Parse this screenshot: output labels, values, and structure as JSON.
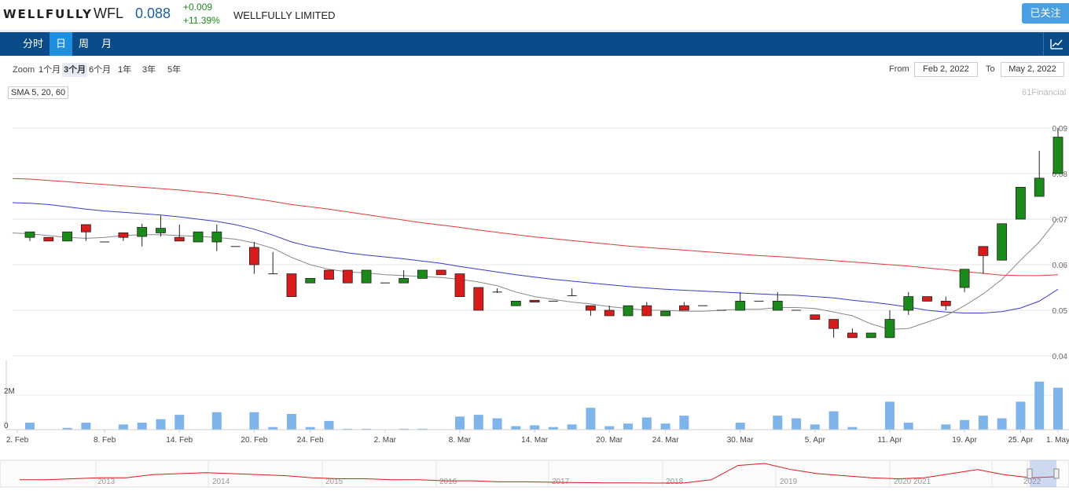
{
  "header": {
    "logo": "WELLFULLY",
    "ticker": "WFL",
    "price": "0.088",
    "change": "+0.009",
    "change_pct": "+11.39%",
    "company": "WELLFULLY LIMITED",
    "follow_label": "已关注"
  },
  "tabs": [
    "分时",
    "日",
    "周",
    "月"
  ],
  "active_tab": "日",
  "zoom": {
    "label": "Zoom",
    "options": [
      "1个月",
      "3个月",
      "6个月",
      "1年",
      "3年",
      "5年"
    ],
    "active": "3个月",
    "from_label": "From",
    "from_value": "Feb 2, 2022",
    "to_label": "To",
    "to_value": "May 2, 2022"
  },
  "indicator_label": "SMA 5, 20, 60",
  "watermark": "61Financial",
  "colors": {
    "up": "#1a8a1a",
    "down": "#d81b1b",
    "sma5": "#888888",
    "sma20": "#3a3acc",
    "sma60": "#e03a3a",
    "volume": "#7fb4ea",
    "nav_line": "#d81b1b"
  },
  "chart_data": {
    "type": "candlestick",
    "y_ticks": [
      "0.09",
      "0.08",
      "0.07",
      "0.06",
      "0.05",
      "0.04"
    ],
    "ylim": [
      0.04,
      0.09
    ],
    "x_tick_labels": [
      "2. Feb",
      "8. Feb",
      "14. Feb",
      "20. Feb",
      "24. Feb",
      "2. Mar",
      "8. Mar",
      "14. Mar",
      "20. Mar",
      "24. Mar",
      "30. Mar",
      "5. Apr",
      "11. Apr",
      "19. Apr",
      "25. Apr",
      "1. May"
    ],
    "volume_ticks": [
      "2M",
      "0"
    ],
    "volume_max": 4000000,
    "candles": [
      {
        "o": 0.066,
        "h": 0.0672,
        "l": 0.0652,
        "c": 0.0672,
        "v": 400000
      },
      {
        "o": 0.066,
        "h": 0.066,
        "l": 0.0652,
        "c": 0.0652,
        "v": 0
      },
      {
        "o": 0.0652,
        "h": 0.0672,
        "l": 0.0652,
        "c": 0.0672,
        "v": 100000
      },
      {
        "o": 0.0688,
        "h": 0.0688,
        "l": 0.0652,
        "c": 0.0672,
        "v": 400000
      },
      {
        "o": 0.065,
        "h": 0.065,
        "l": 0.065,
        "c": 0.065,
        "v": 0
      },
      {
        "o": 0.067,
        "h": 0.067,
        "l": 0.0652,
        "c": 0.066,
        "v": 300000
      },
      {
        "o": 0.0662,
        "h": 0.069,
        "l": 0.064,
        "c": 0.0682,
        "v": 400000
      },
      {
        "o": 0.067,
        "h": 0.0708,
        "l": 0.0662,
        "c": 0.068,
        "v": 600000
      },
      {
        "o": 0.066,
        "h": 0.0688,
        "l": 0.0652,
        "c": 0.0652,
        "v": 850000
      },
      {
        "o": 0.065,
        "h": 0.0672,
        "l": 0.065,
        "c": 0.0672,
        "v": 0
      },
      {
        "o": 0.065,
        "h": 0.0688,
        "l": 0.063,
        "c": 0.0672,
        "v": 1000000
      },
      {
        "o": 0.064,
        "h": 0.064,
        "l": 0.064,
        "c": 0.064,
        "v": 0
      },
      {
        "o": 0.0638,
        "h": 0.065,
        "l": 0.058,
        "c": 0.06,
        "v": 1000000
      },
      {
        "o": 0.058,
        "h": 0.0628,
        "l": 0.058,
        "c": 0.058,
        "v": 150000
      },
      {
        "o": 0.058,
        "h": 0.058,
        "l": 0.053,
        "c": 0.053,
        "v": 900000
      },
      {
        "o": 0.056,
        "h": 0.057,
        "l": 0.056,
        "c": 0.057,
        "v": 150000
      },
      {
        "o": 0.0588,
        "h": 0.0588,
        "l": 0.0568,
        "c": 0.0568,
        "v": 500000
      },
      {
        "o": 0.0588,
        "h": 0.0588,
        "l": 0.056,
        "c": 0.056,
        "v": 50000
      },
      {
        "o": 0.056,
        "h": 0.0588,
        "l": 0.056,
        "c": 0.0588,
        "v": 50000
      },
      {
        "o": 0.056,
        "h": 0.056,
        "l": 0.056,
        "c": 0.056,
        "v": 0
      },
      {
        "o": 0.056,
        "h": 0.0588,
        "l": 0.056,
        "c": 0.057,
        "v": 50000
      },
      {
        "o": 0.057,
        "h": 0.0588,
        "l": 0.057,
        "c": 0.0588,
        "v": 50000
      },
      {
        "o": 0.0588,
        "h": 0.0588,
        "l": 0.0578,
        "c": 0.0578,
        "v": 0
      },
      {
        "o": 0.058,
        "h": 0.058,
        "l": 0.053,
        "c": 0.053,
        "v": 750000
      },
      {
        "o": 0.055,
        "h": 0.055,
        "l": 0.05,
        "c": 0.05,
        "v": 850000
      },
      {
        "o": 0.054,
        "h": 0.0548,
        "l": 0.0538,
        "c": 0.054,
        "v": 650000
      },
      {
        "o": 0.051,
        "h": 0.052,
        "l": 0.051,
        "c": 0.052,
        "v": 200000
      },
      {
        "o": 0.0522,
        "h": 0.0522,
        "l": 0.0518,
        "c": 0.0518,
        "v": 250000
      },
      {
        "o": 0.052,
        "h": 0.052,
        "l": 0.052,
        "c": 0.052,
        "v": 150000
      },
      {
        "o": 0.0532,
        "h": 0.0548,
        "l": 0.0532,
        "c": 0.0532,
        "v": 300000
      },
      {
        "o": 0.051,
        "h": 0.051,
        "l": 0.0488,
        "c": 0.05,
        "v": 1250000
      },
      {
        "o": 0.05,
        "h": 0.051,
        "l": 0.0488,
        "c": 0.0488,
        "v": 200000
      },
      {
        "o": 0.0488,
        "h": 0.051,
        "l": 0.0488,
        "c": 0.051,
        "v": 350000
      },
      {
        "o": 0.051,
        "h": 0.0518,
        "l": 0.0488,
        "c": 0.0488,
        "v": 700000
      },
      {
        "o": 0.0488,
        "h": 0.0498,
        "l": 0.0488,
        "c": 0.0498,
        "v": 350000
      },
      {
        "o": 0.051,
        "h": 0.0518,
        "l": 0.05,
        "c": 0.05,
        "v": 800000
      },
      {
        "o": 0.051,
        "h": 0.051,
        "l": 0.051,
        "c": 0.051,
        "v": 0
      },
      {
        "o": 0.05,
        "h": 0.05,
        "l": 0.05,
        "c": 0.05,
        "v": 0
      },
      {
        "o": 0.05,
        "h": 0.054,
        "l": 0.05,
        "c": 0.052,
        "v": 400000
      },
      {
        "o": 0.052,
        "h": 0.052,
        "l": 0.052,
        "c": 0.052,
        "v": 0
      },
      {
        "o": 0.05,
        "h": 0.054,
        "l": 0.05,
        "c": 0.052,
        "v": 800000
      },
      {
        "o": 0.05,
        "h": 0.05,
        "l": 0.05,
        "c": 0.05,
        "v": 650000
      },
      {
        "o": 0.049,
        "h": 0.049,
        "l": 0.048,
        "c": 0.048,
        "v": 300000
      },
      {
        "o": 0.048,
        "h": 0.048,
        "l": 0.044,
        "c": 0.046,
        "v": 1050000
      },
      {
        "o": 0.045,
        "h": 0.046,
        "l": 0.044,
        "c": 0.044,
        "v": 150000
      },
      {
        "o": 0.044,
        "h": 0.045,
        "l": 0.044,
        "c": 0.045,
        "v": 0
      },
      {
        "o": 0.044,
        "h": 0.05,
        "l": 0.044,
        "c": 0.048,
        "v": 1600000
      },
      {
        "o": 0.05,
        "h": 0.054,
        "l": 0.049,
        "c": 0.053,
        "v": 400000
      },
      {
        "o": 0.053,
        "h": 0.053,
        "l": 0.052,
        "c": 0.052,
        "v": 0
      },
      {
        "o": 0.052,
        "h": 0.053,
        "l": 0.05,
        "c": 0.051,
        "v": 300000
      },
      {
        "o": 0.055,
        "h": 0.059,
        "l": 0.054,
        "c": 0.059,
        "v": 550000
      },
      {
        "o": 0.064,
        "h": 0.064,
        "l": 0.058,
        "c": 0.062,
        "v": 800000
      },
      {
        "o": 0.061,
        "h": 0.069,
        "l": 0.061,
        "c": 0.069,
        "v": 650000
      },
      {
        "o": 0.07,
        "h": 0.077,
        "l": 0.07,
        "c": 0.077,
        "v": 1600000
      },
      {
        "o": 0.075,
        "h": 0.085,
        "l": 0.075,
        "c": 0.079,
        "v": 2750000
      },
      {
        "o": 0.08,
        "h": 0.09,
        "l": 0.08,
        "c": 0.088,
        "v": 2400000
      }
    ],
    "sma5": [
      0.0668,
      0.0664,
      0.066,
      0.0658,
      0.066,
      0.0664,
      0.0666,
      0.0666,
      0.0664,
      0.0662,
      0.066,
      0.0656,
      0.0648,
      0.0636,
      0.0616,
      0.06,
      0.059,
      0.0584,
      0.0582,
      0.0578,
      0.0576,
      0.0574,
      0.0572,
      0.0568,
      0.0562,
      0.0554,
      0.054,
      0.053,
      0.0524,
      0.0518,
      0.0514,
      0.0508,
      0.0504,
      0.05,
      0.05,
      0.0498,
      0.0498,
      0.05,
      0.0502,
      0.0502,
      0.0506,
      0.0506,
      0.0504,
      0.0496,
      0.0488,
      0.047,
      0.0458,
      0.046,
      0.0474,
      0.0488,
      0.051,
      0.0536,
      0.0568,
      0.061,
      0.065,
      0.0702
    ],
    "sma20": [
      0.0735,
      0.0732,
      0.0727,
      0.0722,
      0.0718,
      0.0715,
      0.0712,
      0.0709,
      0.0705,
      0.07,
      0.0695,
      0.0688,
      0.0678,
      0.0665,
      0.065,
      0.064,
      0.0633,
      0.0626,
      0.0621,
      0.0617,
      0.0613,
      0.0608,
      0.0603,
      0.0596,
      0.059,
      0.0584,
      0.0578,
      0.0573,
      0.0568,
      0.0564,
      0.056,
      0.0556,
      0.0552,
      0.0549,
      0.0546,
      0.0544,
      0.0542,
      0.054,
      0.0538,
      0.0536,
      0.0534,
      0.0533,
      0.053,
      0.0527,
      0.0522,
      0.0518,
      0.0513,
      0.0507,
      0.05,
      0.0496,
      0.0494,
      0.0494,
      0.0497,
      0.0505,
      0.052,
      0.0546
    ],
    "sma60": [
      0.0788,
      0.0785,
      0.0782,
      0.0779,
      0.0776,
      0.0773,
      0.077,
      0.0767,
      0.0764,
      0.076,
      0.0756,
      0.0751,
      0.0745,
      0.0739,
      0.0732,
      0.0727,
      0.0722,
      0.0716,
      0.071,
      0.0704,
      0.0698,
      0.0692,
      0.0687,
      0.0682,
      0.0676,
      0.0671,
      0.0666,
      0.0661,
      0.0657,
      0.0653,
      0.0649,
      0.0645,
      0.0641,
      0.0638,
      0.0635,
      0.0632,
      0.0629,
      0.0626,
      0.0623,
      0.062,
      0.0618,
      0.0615,
      0.0612,
      0.0609,
      0.0606,
      0.0603,
      0.06,
      0.0597,
      0.0593,
      0.0589,
      0.0585,
      0.0581,
      0.0577,
      0.0576,
      0.0576,
      0.0578
    ]
  },
  "navigator": {
    "years": [
      "2013",
      "2014",
      "2015",
      "2016",
      "2017",
      "2018",
      "2019",
      "2020",
      "2021",
      "2022"
    ],
    "series": [
      0.2,
      0.2,
      0.25,
      0.3,
      0.3,
      0.45,
      0.5,
      0.55,
      0.5,
      0.45,
      0.4,
      0.3,
      0.25,
      0.25,
      0.2,
      0.2,
      0.15,
      0.15,
      0.1,
      0.1,
      0.08,
      0.06,
      0.05,
      0.05,
      0.04,
      0.05,
      0.2,
      0.9,
      1.0,
      0.7,
      0.5,
      0.4,
      0.3,
      0.25,
      0.3,
      0.5,
      0.7,
      0.45,
      0.3,
      0.35
    ]
  }
}
